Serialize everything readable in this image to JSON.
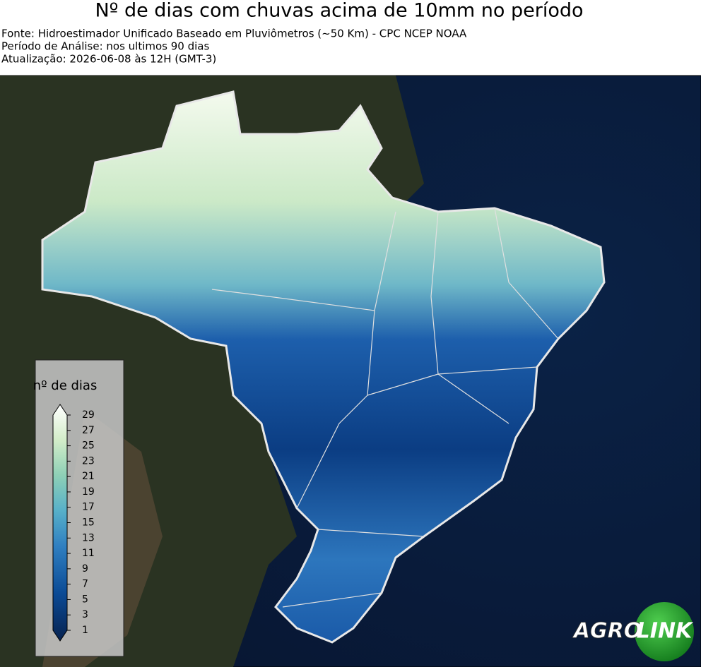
{
  "header": {
    "title": "Nº de dias com chuvas acima de 10mm no período",
    "lines": [
      "Fonte: Hidroestimador Unificado Baseado em Pluviômetros (~50 Km) - CPC NCEP NOAA",
      "Período de Análise: nos ultimos 90 dias",
      "Atualização: 2026-06-08 às 12H (GMT-3)"
    ]
  },
  "legend": {
    "title": "nº de dias",
    "ticks": [
      29,
      27,
      25,
      23,
      21,
      19,
      17,
      15,
      13,
      11,
      9,
      7,
      5,
      3,
      1
    ]
  },
  "logo": {
    "left": "AGRO",
    "right": "LINK"
  }
}
